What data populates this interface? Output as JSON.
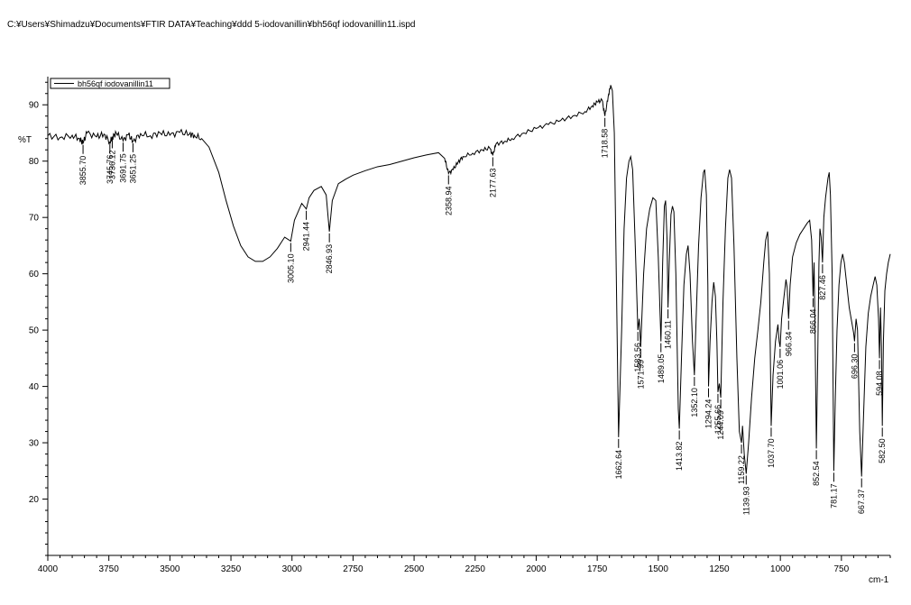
{
  "file_path": "C:¥Users¥Shimadzu¥Documents¥FTIR DATA¥Teaching¥ddd 5-iodovanillin¥bh56qf iodovanillin11.ispd",
  "chart_data": {
    "type": "line",
    "title": "",
    "xlabel": "cm-1",
    "ylabel": "%T",
    "xlim": [
      4000,
      550
    ],
    "ylim": [
      10,
      95
    ],
    "x_reversed": true,
    "x_ticks": [
      4000,
      3750,
      3500,
      3250,
      3000,
      2750,
      2500,
      2250,
      2000,
      1750,
      1500,
      1250,
      1000,
      750
    ],
    "y_ticks": [
      20,
      30,
      40,
      50,
      60,
      70,
      80,
      90
    ],
    "grid": false,
    "legend": {
      "position": "top-left",
      "entries": [
        "bh56qf iodovanillin11"
      ]
    },
    "series": [
      {
        "name": "bh56qf iodovanillin11",
        "color": "#000000",
        "points": [
          [
            4000,
            84.5
          ],
          [
            3950,
            84.2
          ],
          [
            3900,
            84.6
          ],
          [
            3870,
            84.0
          ],
          [
            3855.7,
            83.2
          ],
          [
            3840,
            85.0
          ],
          [
            3800,
            84.3
          ],
          [
            3770,
            84.8
          ],
          [
            3745.76,
            83.4
          ],
          [
            3736.12,
            84.2
          ],
          [
            3720,
            85.0
          ],
          [
            3691.75,
            83.6
          ],
          [
            3670,
            84.7
          ],
          [
            3651.25,
            83.5
          ],
          [
            3620,
            84.9
          ],
          [
            3580,
            84.5
          ],
          [
            3540,
            85.0
          ],
          [
            3500,
            84.6
          ],
          [
            3460,
            85.1
          ],
          [
            3420,
            84.8
          ],
          [
            3400,
            84.6
          ],
          [
            3370,
            84.0
          ],
          [
            3340,
            82.5
          ],
          [
            3300,
            78.0
          ],
          [
            3270,
            73.0
          ],
          [
            3240,
            68.5
          ],
          [
            3210,
            65.0
          ],
          [
            3180,
            63.0
          ],
          [
            3150,
            62.2
          ],
          [
            3120,
            62.2
          ],
          [
            3090,
            63.0
          ],
          [
            3060,
            64.5
          ],
          [
            3030,
            66.5
          ],
          [
            3005.1,
            65.8
          ],
          [
            2990,
            69.5
          ],
          [
            2960,
            72.5
          ],
          [
            2941.44,
            71.5
          ],
          [
            2930,
            73.5
          ],
          [
            2910,
            74.8
          ],
          [
            2880,
            75.5
          ],
          [
            2860,
            74.0
          ],
          [
            2846.93,
            67.5
          ],
          [
            2835,
            73.0
          ],
          [
            2810,
            76.0
          ],
          [
            2780,
            76.8
          ],
          [
            2750,
            77.5
          ],
          [
            2700,
            78.3
          ],
          [
            2650,
            79.0
          ],
          [
            2600,
            79.4
          ],
          [
            2550,
            80.0
          ],
          [
            2500,
            80.6
          ],
          [
            2450,
            81.1
          ],
          [
            2400,
            81.5
          ],
          [
            2375,
            80.5
          ],
          [
            2358.94,
            77.8
          ],
          [
            2340,
            78.5
          ],
          [
            2320,
            79.8
          ],
          [
            2300,
            80.8
          ],
          [
            2260,
            81.4
          ],
          [
            2220,
            82.0
          ],
          [
            2190,
            82.3
          ],
          [
            2177.63,
            81.0
          ],
          [
            2165,
            83.0
          ],
          [
            2130,
            83.5
          ],
          [
            2100,
            84.0
          ],
          [
            2050,
            85.0
          ],
          [
            2000,
            85.8
          ],
          [
            1950,
            86.5
          ],
          [
            1900,
            87.2
          ],
          [
            1850,
            88.0
          ],
          [
            1800,
            88.8
          ],
          [
            1770,
            89.8
          ],
          [
            1750,
            90.5
          ],
          [
            1730,
            90.8
          ],
          [
            1718.58,
            88.0
          ],
          [
            1705,
            91.5
          ],
          [
            1695,
            93.5
          ],
          [
            1688,
            92.5
          ],
          [
            1680,
            85.0
          ],
          [
            1672,
            60.0
          ],
          [
            1662.64,
            31.0
          ],
          [
            1650,
            50.0
          ],
          [
            1640,
            68.0
          ],
          [
            1630,
            77.0
          ],
          [
            1620,
            80.0
          ],
          [
            1613,
            80.8
          ],
          [
            1605,
            78.5
          ],
          [
            1595,
            66.0
          ],
          [
            1583.56,
            50.0
          ],
          [
            1578,
            52.0
          ],
          [
            1571.99,
            47.0
          ],
          [
            1560,
            60.0
          ],
          [
            1548,
            68.0
          ],
          [
            1535,
            71.5
          ],
          [
            1522,
            73.5
          ],
          [
            1510,
            73.0
          ],
          [
            1500,
            63.0
          ],
          [
            1489.05,
            48.0
          ],
          [
            1482,
            62.0
          ],
          [
            1475,
            72.0
          ],
          [
            1470,
            73.0
          ],
          [
            1464,
            66.0
          ],
          [
            1460.11,
            54.0
          ],
          [
            1455,
            62.0
          ],
          [
            1448,
            70.5
          ],
          [
            1442,
            72.0
          ],
          [
            1436,
            71.0
          ],
          [
            1428,
            60.0
          ],
          [
            1418,
            36.0
          ],
          [
            1413.82,
            32.5
          ],
          [
            1405,
            45.0
          ],
          [
            1395,
            58.0
          ],
          [
            1385,
            63.5
          ],
          [
            1378,
            65.0
          ],
          [
            1370,
            60.0
          ],
          [
            1360,
            48.0
          ],
          [
            1352.1,
            42.0
          ],
          [
            1345,
            52.0
          ],
          [
            1335,
            65.0
          ],
          [
            1325,
            73.5
          ],
          [
            1315,
            78.0
          ],
          [
            1310,
            78.5
          ],
          [
            1303,
            74.0
          ],
          [
            1297,
            58.0
          ],
          [
            1294.24,
            40.0
          ],
          [
            1288,
            48.0
          ],
          [
            1280,
            55.0
          ],
          [
            1273,
            58.5
          ],
          [
            1266,
            56.0
          ],
          [
            1260,
            48.0
          ],
          [
            1255.66,
            39.0
          ],
          [
            1250,
            40.5
          ],
          [
            1244.09,
            38.0
          ],
          [
            1235,
            55.0
          ],
          [
            1225,
            68.0
          ],
          [
            1215,
            77.0
          ],
          [
            1208,
            78.5
          ],
          [
            1200,
            77.0
          ],
          [
            1190,
            65.0
          ],
          [
            1178,
            45.0
          ],
          [
            1168,
            32.0
          ],
          [
            1159.22,
            30.0
          ],
          [
            1155,
            33.0
          ],
          [
            1148,
            28.0
          ],
          [
            1139.93,
            24.5
          ],
          [
            1130,
            30.0
          ],
          [
            1118,
            38.0
          ],
          [
            1105,
            45.0
          ],
          [
            1092,
            50.0
          ],
          [
            1080,
            55.0
          ],
          [
            1068,
            62.0
          ],
          [
            1060,
            66.0
          ],
          [
            1052,
            67.5
          ],
          [
            1045,
            60.0
          ],
          [
            1037.7,
            33.0
          ],
          [
            1030,
            42.0
          ],
          [
            1020,
            48.0
          ],
          [
            1010,
            51.0
          ],
          [
            1005,
            48.0
          ],
          [
            1001.06,
            47.0
          ],
          [
            995,
            52.0
          ],
          [
            985,
            56.0
          ],
          [
            977,
            59.0
          ],
          [
            972,
            57.5
          ],
          [
            966.34,
            52.0
          ],
          [
            960,
            58.0
          ],
          [
            950,
            63.0
          ],
          [
            935,
            65.5
          ],
          [
            920,
            67.0
          ],
          [
            905,
            68.0
          ],
          [
            890,
            69.0
          ],
          [
            880,
            69.5
          ],
          [
            872,
            66.0
          ],
          [
            866.04,
            56.0
          ],
          [
            862,
            62.0
          ],
          [
            858,
            50.0
          ],
          [
            852.54,
            29.0
          ],
          [
            847,
            45.0
          ],
          [
            842,
            62.0
          ],
          [
            838,
            68.0
          ],
          [
            833,
            66.5
          ],
          [
            827.46,
            62.0
          ],
          [
            822,
            70.0
          ],
          [
            815,
            73.5
          ],
          [
            805,
            77.0
          ],
          [
            800,
            78.0
          ],
          [
            795,
            74.0
          ],
          [
            788,
            60.0
          ],
          [
            781.17,
            25.0
          ],
          [
            775,
            38.0
          ],
          [
            768,
            50.0
          ],
          [
            760,
            58.0
          ],
          [
            752,
            62.0
          ],
          [
            745,
            63.5
          ],
          [
            738,
            62.0
          ],
          [
            728,
            58.0
          ],
          [
            718,
            54.0
          ],
          [
            708,
            51.5
          ],
          [
            700,
            49.5
          ],
          [
            696.3,
            48.0
          ],
          [
            690,
            52.0
          ],
          [
            684,
            50.0
          ],
          [
            675,
            32.0
          ],
          [
            667.37,
            24.0
          ],
          [
            660,
            34.0
          ],
          [
            650,
            47.0
          ],
          [
            640,
            53.0
          ],
          [
            630,
            56.0
          ],
          [
            620,
            58.0
          ],
          [
            612,
            59.5
          ],
          [
            605,
            58.0
          ],
          [
            598,
            52.0
          ],
          [
            594.08,
            45.0
          ],
          [
            590,
            54.0
          ],
          [
            586,
            47.0
          ],
          [
            582.5,
            33.0
          ],
          [
            578,
            48.0
          ],
          [
            572,
            57.0
          ],
          [
            565,
            60.0
          ],
          [
            558,
            62.0
          ],
          [
            550,
            63.5
          ]
        ]
      }
    ],
    "peak_labels": [
      {
        "x": 3855.7,
        "y": 83.2,
        "label": "3855.70"
      },
      {
        "x": 3745.76,
        "y": 83.4,
        "label": "3745.76"
      },
      {
        "x": 3736.12,
        "y": 84.2,
        "label": "3736.12"
      },
      {
        "x": 3691.75,
        "y": 83.6,
        "label": "3691.75"
      },
      {
        "x": 3651.25,
        "y": 83.5,
        "label": "3651.25"
      },
      {
        "x": 3005.1,
        "y": 65.8,
        "label": "3005.10"
      },
      {
        "x": 2941.44,
        "y": 71.5,
        "label": "2941.44"
      },
      {
        "x": 2846.93,
        "y": 67.5,
        "label": "2846.93"
      },
      {
        "x": 2358.94,
        "y": 77.8,
        "label": "2358.94"
      },
      {
        "x": 2177.63,
        "y": 81.0,
        "label": "2177.63"
      },
      {
        "x": 1718.58,
        "y": 88.0,
        "label": "1718.58"
      },
      {
        "x": 1662.64,
        "y": 31.0,
        "label": "1662.64"
      },
      {
        "x": 1583.56,
        "y": 50.0,
        "label": "1583.56"
      },
      {
        "x": 1571.99,
        "y": 47.0,
        "label": "1571.99"
      },
      {
        "x": 1489.05,
        "y": 48.0,
        "label": "1489.05"
      },
      {
        "x": 1460.11,
        "y": 54.0,
        "label": "1460.11"
      },
      {
        "x": 1413.82,
        "y": 32.5,
        "label": "1413.82"
      },
      {
        "x": 1352.1,
        "y": 42.0,
        "label": "1352.10"
      },
      {
        "x": 1294.24,
        "y": 40.0,
        "label": "1294.24"
      },
      {
        "x": 1255.66,
        "y": 39.0,
        "label": "1255.66"
      },
      {
        "x": 1244.09,
        "y": 38.0,
        "label": "1244.09"
      },
      {
        "x": 1159.22,
        "y": 30.0,
        "label": "1159.22"
      },
      {
        "x": 1139.93,
        "y": 24.5,
        "label": "1139.93"
      },
      {
        "x": 1037.7,
        "y": 33.0,
        "label": "1037.70"
      },
      {
        "x": 1001.06,
        "y": 47.0,
        "label": "1001.06"
      },
      {
        "x": 966.34,
        "y": 52.0,
        "label": "966.34"
      },
      {
        "x": 866.04,
        "y": 56.0,
        "label": "866.04"
      },
      {
        "x": 852.54,
        "y": 29.0,
        "label": "852.54"
      },
      {
        "x": 827.46,
        "y": 62.0,
        "label": "827.46"
      },
      {
        "x": 781.17,
        "y": 25.0,
        "label": "781.17"
      },
      {
        "x": 696.3,
        "y": 48.0,
        "label": "696.30"
      },
      {
        "x": 667.37,
        "y": 24.0,
        "label": "667.37"
      },
      {
        "x": 594.08,
        "y": 45.0,
        "label": "594.08"
      },
      {
        "x": 582.5,
        "y": 33.0,
        "label": "582.50"
      }
    ]
  }
}
